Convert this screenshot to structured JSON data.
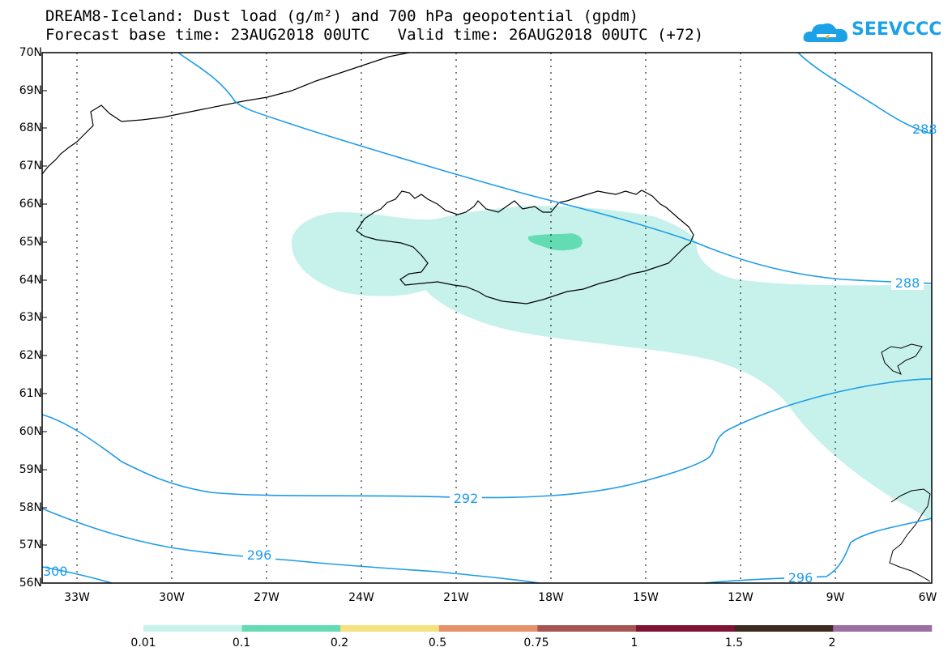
{
  "header": {
    "title_line1": "DREAM8-Iceland: Dust load (g/m²) and 700 hPa geopotential (gpdm)",
    "title_line2": "Forecast base time: 23AUG2018 00UTC   Valid time: 26AUG2018 00UTC (+72)",
    "logo_text": "SEEVCCC",
    "logo_icon": "cloud-icon"
  },
  "map": {
    "lat_labels": [
      "70N",
      "69N",
      "68N",
      "67N",
      "66N",
      "65N",
      "64N",
      "63N",
      "62N",
      "61N",
      "60N",
      "59N",
      "58N",
      "57N",
      "56N"
    ],
    "lon_labels": [
      "33W",
      "30W",
      "27W",
      "24W",
      "21W",
      "18W",
      "15W",
      "12W",
      "9W",
      "6W"
    ],
    "contour_labels": [
      "288",
      "288",
      "292",
      "296",
      "296",
      "300"
    ],
    "contour_color": "#1e9be8",
    "land_outline_color": "#000000"
  },
  "colorbar": {
    "labels": [
      "0.01",
      "0.1",
      "0.2",
      "0.5",
      "0.75",
      "1",
      "1.5",
      "2"
    ],
    "colors": [
      "#c6f2eb",
      "#63dcb4",
      "#f5e17e",
      "#e5926b",
      "#a65652",
      "#7e1434",
      "#3d2b1f",
      "#9c6ea3"
    ]
  }
}
